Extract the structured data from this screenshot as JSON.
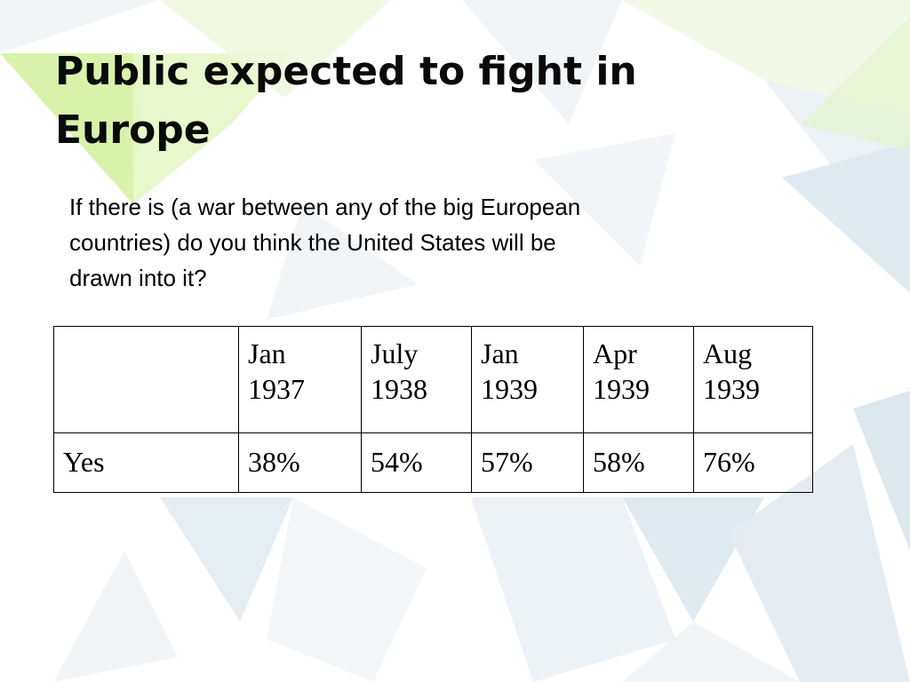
{
  "slide": {
    "title_lines": [
      "Public expected to fight in",
      "Europe"
    ],
    "question_lines": [
      "If there is (a war between any of the big European",
      "countries) do you think the United States will be",
      "drawn into it?"
    ],
    "table": {
      "corner": "",
      "columns": [
        {
          "month": "Jan",
          "year": "1937"
        },
        {
          "month": "July",
          "year": "1938"
        },
        {
          "month": "Jan",
          "year": "1939"
        },
        {
          "month": "Apr",
          "year": "1939"
        },
        {
          "month": "Aug",
          "year": "1939"
        }
      ],
      "rows": [
        {
          "label": "Yes",
          "values": [
            "38%",
            "54%",
            "57%",
            "58%",
            "76%"
          ]
        }
      ]
    }
  },
  "colors": {
    "background": "#ffffff",
    "accent_green": "#c8ec8a",
    "accent_blue": "#d6e6f0",
    "text": "#000000"
  }
}
